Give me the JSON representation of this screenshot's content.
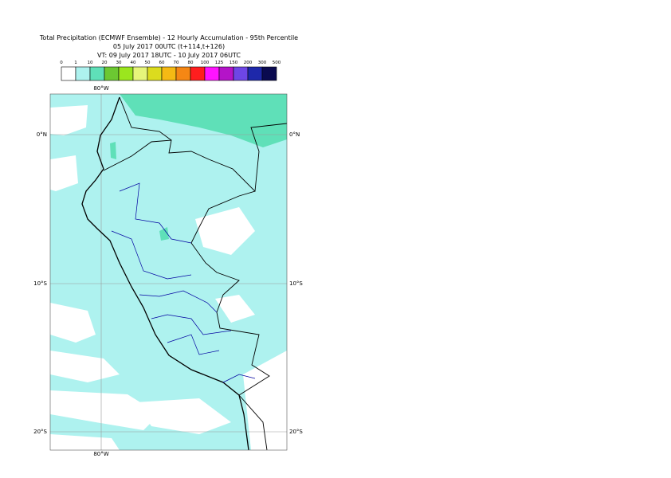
{
  "header": {
    "title": "Total Precipitation (ECMWF Ensemble) - 12 Hourly Accumulation - 95th Percentile",
    "base_time": "05 July 2017 00UTC (t+114,t+126)",
    "valid_time": "VT: 09 July 2017 18UTC - 10 July 2017 06UTC"
  },
  "legend": {
    "labels": [
      0,
      1,
      10,
      20,
      30,
      40,
      50,
      60,
      70,
      80,
      100,
      125,
      150,
      200,
      300,
      500
    ],
    "colors": [
      "#ffffff",
      "#aef2ef",
      "#5fe0b8",
      "#6cc832",
      "#9be61e",
      "#e6f57a",
      "#dcdc1e",
      "#f5b914",
      "#f58714",
      "#ff1e1e",
      "#ff14ff",
      "#b414c8",
      "#6e46e6",
      "#1e28aa",
      "#0a0a50"
    ]
  },
  "map": {
    "lon_label": "80°W",
    "lat_labels": [
      "0°N",
      "10°S",
      "20°S"
    ]
  }
}
